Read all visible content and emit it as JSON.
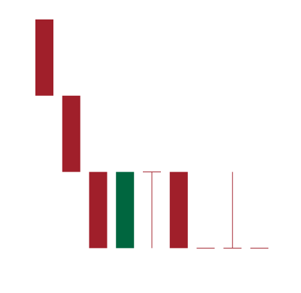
{
  "chart_data": {
    "type": "candlestick",
    "title": "",
    "xlabel": "",
    "ylabel": "",
    "ylim": [
      0,
      10
    ],
    "grid": false,
    "legend": "none",
    "colors": {
      "down": "#a01f2a",
      "up": "#00663f"
    },
    "candles": [
      {
        "open": 10.0,
        "high": 10.0,
        "low": 7.0,
        "close": 7.0
      },
      {
        "open": 7.0,
        "high": 7.0,
        "low": 4.0,
        "close": 4.0
      },
      {
        "open": 4.0,
        "high": 4.0,
        "low": 1.0,
        "close": 1.0
      },
      {
        "open": 1.0,
        "high": 4.0,
        "low": 1.0,
        "close": 4.0
      },
      {
        "open": 4.0,
        "high": 4.0,
        "low": 1.0,
        "close": 4.0
      },
      {
        "open": 4.0,
        "high": 4.0,
        "low": 1.0,
        "close": 1.0
      },
      {
        "open": 1.0,
        "high": 1.0,
        "low": 1.0,
        "close": 1.0
      },
      {
        "open": 1.0,
        "high": 4.0,
        "low": 1.0,
        "close": 1.0
      },
      {
        "open": 1.0,
        "high": 1.0,
        "low": 1.0,
        "close": 1.0
      }
    ]
  }
}
